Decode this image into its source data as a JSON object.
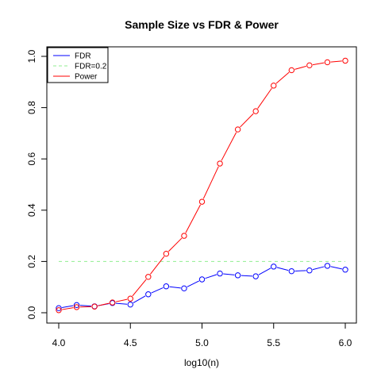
{
  "chart_data": {
    "type": "line",
    "title": "Sample Size vs FDR & Power",
    "xlabel": "log10(n)",
    "ylabel": "",
    "xlim": [
      4.0,
      6.0
    ],
    "ylim": [
      0.0,
      1.0
    ],
    "x_ticks": [
      "4.0",
      "4.5",
      "5.0",
      "5.5",
      "6.0"
    ],
    "y_ticks": [
      "0.0",
      "0.2",
      "0.4",
      "0.6",
      "0.8",
      "1.0"
    ],
    "grid": false,
    "legend_position": "top-left",
    "x": [
      4.0,
      4.125,
      4.25,
      4.375,
      4.5,
      4.625,
      4.75,
      4.875,
      5.0,
      5.125,
      5.25,
      5.375,
      5.5,
      5.625,
      5.75,
      5.875,
      6.0
    ],
    "series": [
      {
        "name": "FDR",
        "color": "#0000ff",
        "style": "line-points",
        "values": [
          0.018,
          0.03,
          0.025,
          0.038,
          0.032,
          0.072,
          0.103,
          0.095,
          0.13,
          0.153,
          0.146,
          0.142,
          0.18,
          0.162,
          0.165,
          0.183,
          0.168
        ]
      },
      {
        "name": "FDR=0.2",
        "color": "#90ee90",
        "style": "dashed",
        "values": [
          0.2,
          0.2,
          0.2,
          0.2,
          0.2,
          0.2,
          0.2,
          0.2,
          0.2,
          0.2,
          0.2,
          0.2,
          0.2,
          0.2,
          0.2,
          0.2,
          0.2
        ]
      },
      {
        "name": "Power",
        "color": "#ff0000",
        "style": "line-points",
        "values": [
          0.01,
          0.022,
          0.024,
          0.04,
          0.055,
          0.14,
          0.23,
          0.3,
          0.433,
          0.582,
          0.715,
          0.786,
          0.886,
          0.946,
          0.965,
          0.977,
          0.983
        ]
      }
    ]
  }
}
